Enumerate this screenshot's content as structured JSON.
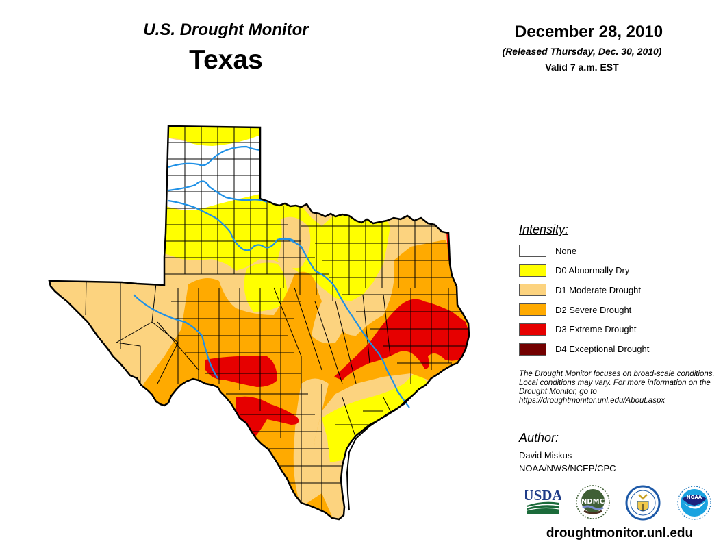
{
  "header": {
    "title": "U.S. Drought Monitor",
    "state": "Texas",
    "date": "December 28, 2010",
    "released": "(Released Thursday, Dec. 30, 2010)",
    "valid": "Valid 7 a.m. EST"
  },
  "legend": {
    "title": "Intensity:",
    "items": [
      {
        "label": "None",
        "color": "#ffffff"
      },
      {
        "label": "D0 Abnormally Dry",
        "color": "#ffff00"
      },
      {
        "label": "D1 Moderate Drought",
        "color": "#fcd37f"
      },
      {
        "label": "D2 Severe Drought",
        "color": "#ffaa00"
      },
      {
        "label": "D3 Extreme Drought",
        "color": "#e60000"
      },
      {
        "label": "D4 Exceptional Drought",
        "color": "#730000"
      }
    ]
  },
  "disclaimer": "The Drought Monitor focuses on broad-scale conditions. Local conditions may vary. For more information on the Drought Monitor, go to https://droughtmonitor.unl.edu/About.aspx",
  "author": {
    "title": "Author:",
    "name": "David Miskus",
    "org": "NOAA/NWS/NCEP/CPC"
  },
  "logos": [
    "USDA",
    "NDMC",
    "DOC",
    "NOAA"
  ],
  "footer_url": "droughtmonitor.unl.edu",
  "colors": {
    "river": "#1e90e6",
    "border": "#000000"
  }
}
